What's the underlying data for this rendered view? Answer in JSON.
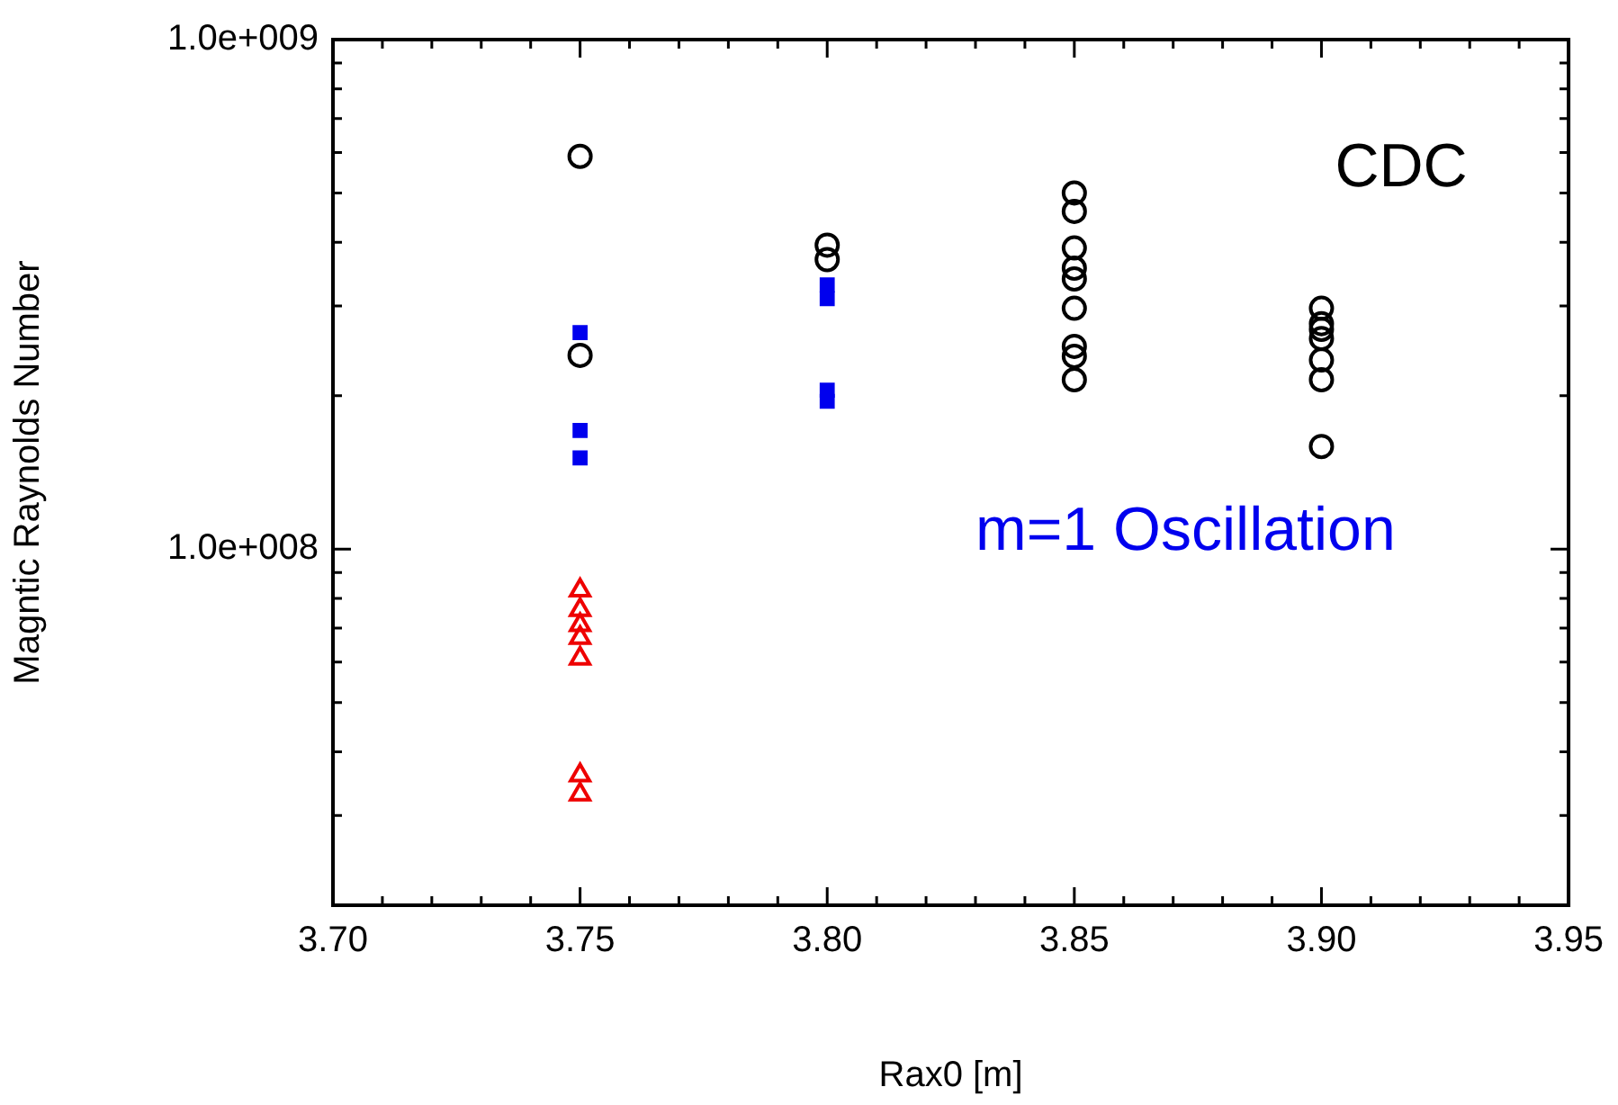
{
  "chart_data": {
    "type": "scatter",
    "xlabel": "Rax0 [m]",
    "ylabel": "Magntic Raynolds Number",
    "log": "y",
    "grid": false,
    "legend": false,
    "annotations": [
      "CDC"
    ],
    "xlim": [
      3.7,
      3.95
    ],
    "xticks": [
      {
        "value": 3.7,
        "label": "3.70"
      },
      {
        "value": 3.71,
        "label": null
      },
      {
        "value": 3.72,
        "label": null
      },
      {
        "value": 3.73,
        "label": null
      },
      {
        "value": 3.74,
        "label": null
      },
      {
        "value": 3.75,
        "label": "3.75"
      },
      {
        "value": 3.76,
        "label": null
      },
      {
        "value": 3.77,
        "label": null
      },
      {
        "value": 3.78,
        "label": null
      },
      {
        "value": 3.79,
        "label": null
      },
      {
        "value": 3.8,
        "label": "3.80"
      },
      {
        "value": 3.81,
        "label": null
      },
      {
        "value": 3.82,
        "label": null
      },
      {
        "value": 3.83,
        "label": null
      },
      {
        "value": 3.84,
        "label": null
      },
      {
        "value": 3.85,
        "label": "3.85"
      },
      {
        "value": 3.86,
        "label": null
      },
      {
        "value": 3.87,
        "label": null
      },
      {
        "value": 3.88,
        "label": null
      },
      {
        "value": 3.89,
        "label": null
      },
      {
        "value": 3.9,
        "label": "3.90"
      },
      {
        "value": 3.91,
        "label": null
      },
      {
        "value": 3.92,
        "label": null
      },
      {
        "value": 3.93,
        "label": null
      },
      {
        "value": 3.94,
        "label": null
      },
      {
        "value": 3.95,
        "label": "3.95"
      }
    ],
    "ylim": [
      20000000,
      1000000000
    ],
    "yticks": [
      {
        "value": 20000000,
        "label": null
      },
      {
        "value": 30000000,
        "label": null
      },
      {
        "value": 40000000,
        "label": null
      },
      {
        "value": 50000000,
        "label": null
      },
      {
        "value": 60000000,
        "label": null
      },
      {
        "value": 70000000,
        "label": null
      },
      {
        "value": 80000000,
        "label": null
      },
      {
        "value": 90000000,
        "label": null
      },
      {
        "value": 100000000,
        "label": "1.0e+008"
      },
      {
        "value": 200000000,
        "label": null
      },
      {
        "value": 300000000,
        "label": null
      },
      {
        "value": 400000000,
        "label": null
      },
      {
        "value": 500000000,
        "label": null
      },
      {
        "value": 600000000,
        "label": null
      },
      {
        "value": 700000000,
        "label": null
      },
      {
        "value": 800000000,
        "label": null
      },
      {
        "value": 900000000,
        "label": null
      },
      {
        "value": 1000000000,
        "label": "1.0e+009"
      }
    ],
    "series": [
      {
        "color": "#000000",
        "marker": "circle",
        "x": [
          3.75,
          3.75,
          3.8,
          3.8,
          3.85,
          3.85,
          3.85,
          3.85,
          3.85,
          3.85,
          3.85,
          3.85,
          3.85,
          3.9,
          3.9,
          3.9,
          3.9,
          3.9,
          3.9,
          3.9
        ],
        "values": [
          590000000,
          240000000,
          395000000,
          370000000,
          500000000,
          460000000,
          390000000,
          356000000,
          339000000,
          297000000,
          250000000,
          239000000,
          215000000,
          297000000,
          277000000,
          270000000,
          259000000,
          235000000,
          215000000,
          159000000
        ]
      },
      {
        "name": "m=1 Oscillation",
        "color": "#0000ee",
        "marker": "square",
        "x": [
          3.75,
          3.75,
          3.75,
          3.8,
          3.8,
          3.8,
          3.8
        ],
        "values": [
          266000000,
          171000000,
          151000000,
          330000000,
          310000000,
          205000000,
          195000000
        ]
      },
      {
        "color": "#ee0000",
        "marker": "triangle",
        "x": [
          3.75,
          3.75,
          3.75,
          3.75,
          3.75,
          3.75,
          3.75
        ],
        "values": [
          83000000,
          76000000,
          71000000,
          67000000,
          61000000,
          36000000,
          33000000
        ]
      }
    ]
  }
}
